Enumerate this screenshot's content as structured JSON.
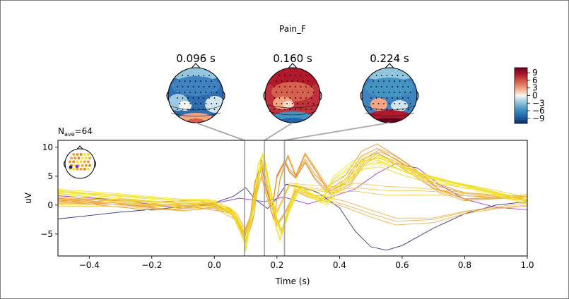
{
  "title": "Pain_F",
  "nave_label": "N",
  "nave_sub": "ave",
  "nave_value": "=64",
  "topomaps": [
    {
      "label": "0.096 s",
      "time": 0.096
    },
    {
      "label": "0.160 s",
      "time": 0.16
    },
    {
      "label": "0.224 s",
      "time": 0.224
    }
  ],
  "colorbar": {
    "ticks": [
      {
        "label": "9",
        "value": 9
      },
      {
        "label": "6",
        "value": 6
      },
      {
        "label": "3",
        "value": 3
      },
      {
        "label": "0",
        "value": 0
      },
      {
        "label": "−3",
        "value": -3
      },
      {
        "label": "−6",
        "value": -6
      },
      {
        "label": "−9",
        "value": -9
      }
    ],
    "range": [
      -11,
      11
    ],
    "colors": [
      "#053061",
      "#2166ac",
      "#4393c3",
      "#92c5de",
      "#f7f7f7",
      "#f4a582",
      "#d6604d",
      "#b2182b",
      "#67001f"
    ]
  },
  "chart_data": {
    "type": "line",
    "xlabel": "Time (s)",
    "ylabel": "uV",
    "xlim": [
      -0.5,
      1.0
    ],
    "ylim": [
      -8.8,
      11.2
    ],
    "xticks": [
      {
        "label": "−0.4",
        "value": -0.4
      },
      {
        "label": "−0.2",
        "value": -0.2
      },
      {
        "label": "0.0",
        "value": 0.0
      },
      {
        "label": "0.2",
        "value": 0.2
      },
      {
        "label": "0.4",
        "value": 0.4
      },
      {
        "label": "0.6",
        "value": 0.6
      },
      {
        "label": "0.8",
        "value": 0.8
      },
      {
        "label": "1.0",
        "value": 1.0
      }
    ],
    "yticks": [
      {
        "label": "10",
        "value": 10
      },
      {
        "label": "5",
        "value": 5
      },
      {
        "label": "0",
        "value": 0
      },
      {
        "label": "−5",
        "value": -5
      }
    ],
    "grid": false,
    "legend": "none",
    "vlines": [
      0.096,
      0.16,
      0.224
    ],
    "series": [
      {
        "color": "#1a1a6e",
        "points": [
          [
            -0.5,
            -2.4
          ],
          [
            -0.3,
            -1.2
          ],
          [
            -0.1,
            -0.3
          ],
          [
            0.0,
            0.4
          ],
          [
            0.06,
            1.5
          ],
          [
            0.1,
            3.0
          ],
          [
            0.13,
            1.0
          ],
          [
            0.17,
            -0.6
          ],
          [
            0.2,
            1.2
          ],
          [
            0.23,
            3.6
          ],
          [
            0.28,
            3.0
          ],
          [
            0.33,
            2.2
          ],
          [
            0.4,
            -0.5
          ],
          [
            0.45,
            -4.5
          ],
          [
            0.5,
            -7.2
          ],
          [
            0.55,
            -7.8
          ],
          [
            0.6,
            -7.0
          ],
          [
            0.7,
            -4.0
          ],
          [
            0.8,
            -1.5
          ],
          [
            0.9,
            0.0
          ],
          [
            1.0,
            0.6
          ]
        ]
      },
      {
        "color": "#8a2be2",
        "points": [
          [
            -0.5,
            1.6
          ],
          [
            -0.3,
            0.9
          ],
          [
            -0.2,
            0.1
          ],
          [
            -0.1,
            -0.6
          ],
          [
            0.0,
            0.3
          ],
          [
            0.08,
            1.2
          ],
          [
            0.16,
            0.6
          ],
          [
            0.22,
            1.4
          ],
          [
            0.3,
            0.2
          ],
          [
            0.38,
            1.5
          ],
          [
            0.45,
            2.8
          ],
          [
            0.52,
            5.5
          ],
          [
            0.58,
            7.2
          ],
          [
            0.65,
            6.4
          ],
          [
            0.72,
            3.5
          ],
          [
            0.8,
            1.0
          ],
          [
            0.9,
            -0.4
          ],
          [
            1.0,
            -0.8
          ]
        ]
      },
      {
        "color": "#e08a1e",
        "points": [
          [
            -0.5,
            0.9
          ],
          [
            -0.35,
            0.2
          ],
          [
            -0.2,
            -0.2
          ],
          [
            -0.05,
            0.3
          ],
          [
            0.05,
            -0.8
          ],
          [
            0.095,
            -4.8
          ],
          [
            0.115,
            -2.0
          ],
          [
            0.13,
            4.0
          ],
          [
            0.15,
            7.0
          ],
          [
            0.165,
            3.0
          ],
          [
            0.185,
            -0.5
          ],
          [
            0.2,
            5.0
          ],
          [
            0.225,
            7.5
          ],
          [
            0.24,
            5.8
          ],
          [
            0.26,
            4.8
          ],
          [
            0.29,
            7.5
          ],
          [
            0.32,
            4.8
          ],
          [
            0.36,
            2.5
          ],
          [
            0.42,
            4.5
          ],
          [
            0.47,
            8.5
          ],
          [
            0.52,
            9.8
          ],
          [
            0.56,
            8.5
          ],
          [
            0.62,
            6.5
          ],
          [
            0.7,
            3.5
          ],
          [
            0.8,
            2.0
          ],
          [
            0.9,
            1.5
          ],
          [
            1.0,
            1.0
          ]
        ]
      },
      {
        "color": "#ec9a2e",
        "points": [
          [
            -0.5,
            1.2
          ],
          [
            -0.3,
            0.3
          ],
          [
            -0.1,
            -0.5
          ],
          [
            0.0,
            0.1
          ],
          [
            0.06,
            -1.5
          ],
          [
            0.095,
            -5.8
          ],
          [
            0.12,
            -1.0
          ],
          [
            0.145,
            6.5
          ],
          [
            0.165,
            2.0
          ],
          [
            0.19,
            -2.5
          ],
          [
            0.21,
            4.5
          ],
          [
            0.235,
            8.5
          ],
          [
            0.26,
            5.0
          ],
          [
            0.29,
            8.8
          ],
          [
            0.33,
            5.5
          ],
          [
            0.37,
            2.0
          ],
          [
            0.43,
            3.5
          ],
          [
            0.48,
            7.5
          ],
          [
            0.53,
            9.2
          ],
          [
            0.58,
            8.0
          ],
          [
            0.65,
            5.5
          ],
          [
            0.72,
            2.5
          ],
          [
            0.8,
            1.0
          ],
          [
            0.9,
            1.2
          ],
          [
            1.0,
            1.5
          ]
        ]
      },
      {
        "color": "#f0a83a",
        "points": [
          [
            -0.5,
            0.5
          ],
          [
            -0.3,
            0.5
          ],
          [
            -0.1,
            -0.3
          ],
          [
            0.0,
            0.0
          ],
          [
            0.07,
            -2.2
          ],
          [
            0.1,
            -6.5
          ],
          [
            0.125,
            -2.0
          ],
          [
            0.15,
            8.0
          ],
          [
            0.168,
            3.5
          ],
          [
            0.2,
            -3.5
          ],
          [
            0.23,
            -1.0
          ],
          [
            0.26,
            2.5
          ],
          [
            0.3,
            1.5
          ],
          [
            0.35,
            1.0
          ],
          [
            0.42,
            0.0
          ],
          [
            0.5,
            -1.5
          ],
          [
            0.58,
            -2.8
          ],
          [
            0.7,
            -2.5
          ],
          [
            0.8,
            -1.2
          ],
          [
            0.9,
            -0.5
          ],
          [
            1.0,
            0.0
          ]
        ]
      },
      {
        "color": "#f3c040",
        "points": [
          [
            -0.5,
            0.0
          ],
          [
            -0.3,
            0.2
          ],
          [
            -0.1,
            -0.2
          ],
          [
            0.0,
            0.2
          ],
          [
            0.07,
            -1.5
          ],
          [
            0.1,
            -4.5
          ],
          [
            0.125,
            0.0
          ],
          [
            0.15,
            5.0
          ],
          [
            0.17,
            1.0
          ],
          [
            0.2,
            -1.2
          ],
          [
            0.24,
            3.5
          ],
          [
            0.3,
            3.0
          ],
          [
            0.38,
            2.5
          ],
          [
            0.45,
            3.0
          ],
          [
            0.55,
            2.5
          ],
          [
            0.65,
            2.5
          ],
          [
            0.75,
            2.2
          ],
          [
            0.85,
            1.8
          ],
          [
            1.0,
            1.0
          ]
        ]
      },
      {
        "color": "#f2e21c",
        "points": [
          [
            -0.5,
            2.6
          ],
          [
            -0.3,
            1.5
          ],
          [
            -0.1,
            0.6
          ],
          [
            -0.02,
            0.8
          ],
          [
            0.05,
            -1.0
          ],
          [
            0.09,
            -4.0
          ],
          [
            0.1,
            -7.8
          ],
          [
            0.115,
            -3.0
          ],
          [
            0.14,
            7.0
          ],
          [
            0.155,
            8.8
          ],
          [
            0.17,
            4.0
          ],
          [
            0.195,
            -3.5
          ],
          [
            0.21,
            -6.0
          ],
          [
            0.23,
            -2.0
          ],
          [
            0.26,
            3.5
          ],
          [
            0.3,
            2.0
          ],
          [
            0.34,
            0.5
          ],
          [
            0.38,
            4.5
          ],
          [
            0.44,
            7.0
          ],
          [
            0.5,
            8.5
          ],
          [
            0.56,
            7.5
          ],
          [
            0.62,
            6.0
          ],
          [
            0.7,
            4.5
          ],
          [
            0.8,
            3.5
          ],
          [
            0.9,
            2.0
          ],
          [
            1.0,
            0.7
          ]
        ]
      },
      {
        "color": "#f6e93a",
        "points": [
          [
            -0.5,
            2.2
          ],
          [
            -0.3,
            1.2
          ],
          [
            -0.1,
            0.3
          ],
          [
            0.0,
            0.4
          ],
          [
            0.06,
            -1.5
          ],
          [
            0.1,
            -6.8
          ],
          [
            0.12,
            -2.0
          ],
          [
            0.145,
            6.5
          ],
          [
            0.16,
            8.0
          ],
          [
            0.178,
            3.0
          ],
          [
            0.2,
            -3.0
          ],
          [
            0.215,
            -5.2
          ],
          [
            0.24,
            -1.0
          ],
          [
            0.27,
            2.5
          ],
          [
            0.31,
            1.5
          ],
          [
            0.36,
            0.2
          ],
          [
            0.41,
            3.5
          ],
          [
            0.46,
            6.2
          ],
          [
            0.52,
            7.8
          ],
          [
            0.58,
            7.0
          ],
          [
            0.66,
            5.2
          ],
          [
            0.75,
            4.0
          ],
          [
            0.85,
            2.5
          ],
          [
            1.0,
            0.3
          ]
        ]
      },
      {
        "color": "#e8d818",
        "points": [
          [
            -0.5,
            2.0
          ],
          [
            -0.3,
            0.9
          ],
          [
            -0.1,
            0.2
          ],
          [
            0.0,
            0.5
          ],
          [
            0.06,
            -1.0
          ],
          [
            0.1,
            -6.0
          ],
          [
            0.12,
            -1.5
          ],
          [
            0.145,
            5.8
          ],
          [
            0.162,
            7.5
          ],
          [
            0.18,
            2.5
          ],
          [
            0.2,
            -2.5
          ],
          [
            0.215,
            -4.5
          ],
          [
            0.24,
            -0.5
          ],
          [
            0.27,
            3.0
          ],
          [
            0.31,
            2.0
          ],
          [
            0.36,
            0.8
          ],
          [
            0.41,
            4.0
          ],
          [
            0.47,
            6.8
          ],
          [
            0.53,
            7.4
          ],
          [
            0.59,
            6.2
          ],
          [
            0.67,
            4.8
          ],
          [
            0.76,
            3.8
          ],
          [
            0.86,
            2.8
          ],
          [
            1.0,
            0.9
          ]
        ]
      }
    ]
  }
}
